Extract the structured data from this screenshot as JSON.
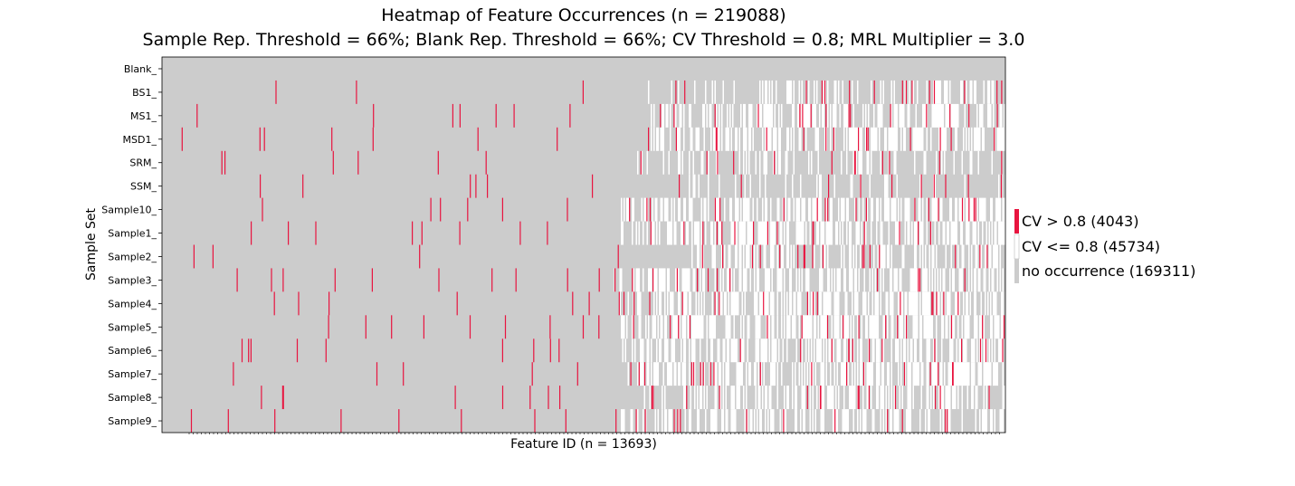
{
  "chart_data": {
    "type": "heatmap",
    "title": "Heatmap of Feature Occurrences (n = 219088)",
    "subtitle": "Sample Rep. Threshold = 66%; Blank Rep. Threshold = 66%; CV Threshold = 0.8; MRL Multiplier = 3.0",
    "xlabel": "Feature ID (n = 13693)",
    "ylabel": "Sample Set",
    "rows": [
      "Blank_",
      "BS1_",
      "MS1_",
      "MSD1_",
      "SRM_",
      "SSM_",
      "Sample10_",
      "Sample1_",
      "Sample2_",
      "Sample3_",
      "Sample4_",
      "Sample5_",
      "Sample6_",
      "Sample7_",
      "Sample8_",
      "Sample9_"
    ],
    "n_features": 13693,
    "legend_placement": "right",
    "legend": [
      {
        "label": "CV > 0.8 (4043)",
        "color": "#e8143f"
      },
      {
        "label": "CV <= 0.8 (45734)",
        "color": "#ffffff"
      },
      {
        "label": "no occurrence (169311)",
        "color": "#cccccc"
      }
    ],
    "counts": {
      "cv_high": 4043,
      "cv_low": 45734,
      "none": 169311,
      "total": 219088
    },
    "occurrence_start_fraction": [
      1.0,
      0.575,
      0.57,
      0.57,
      0.56,
      0.54,
      0.54,
      0.54,
      0.61,
      0.53,
      0.535,
      0.535,
      0.535,
      0.55,
      0.55,
      0.535
    ],
    "occurrence_density": [
      0.0,
      0.25,
      0.55,
      0.5,
      0.25,
      0.12,
      0.6,
      0.55,
      0.45,
      0.5,
      0.55,
      0.6,
      0.5,
      0.55,
      0.5,
      0.45
    ],
    "grid": false
  }
}
